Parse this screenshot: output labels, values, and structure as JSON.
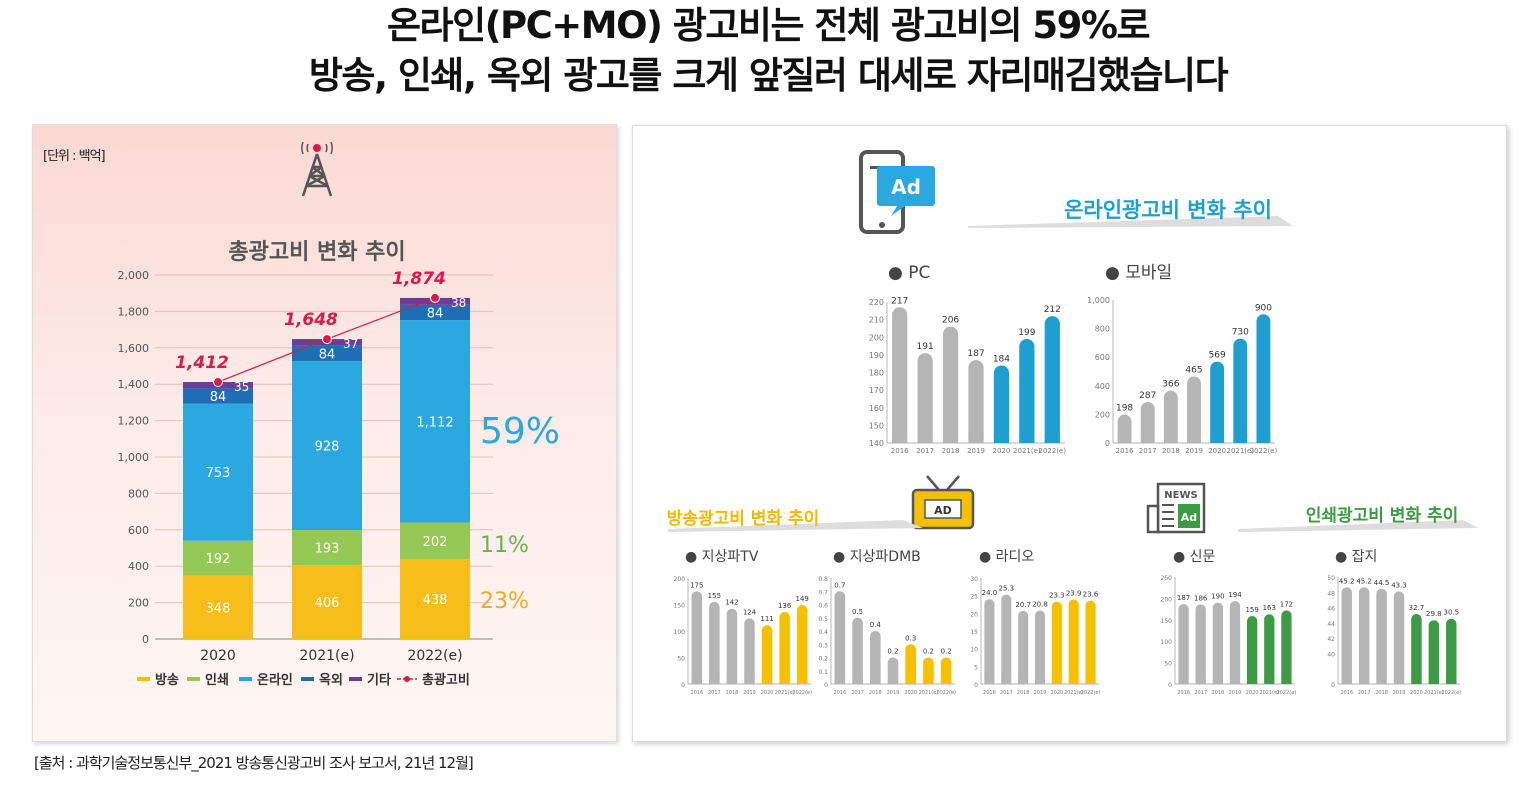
{
  "headline": {
    "line1": "온라인(PC+MO) 광고비는 전체 광고비의 59%로",
    "line2": "방송, 인쇄, 옥외 광고를 크게 앞질러 대세로 자리매김했습니다"
  },
  "source_note": "[출처 : 과학기술정보통신부_2021 방송통신광고비 조사 보고서, 21년 12월]",
  "left_panel": {
    "unit": "[단위 : 백억]",
    "title": "총광고비 변화 추이",
    "tower_icon": "broadcast-tower-icon",
    "colors": {
      "방송": "#f7bd1b",
      "인쇄": "#96c856",
      "온라인": "#2aa8df",
      "옥외": "#1f6db5",
      "기타": "#6a3d98",
      "총광고비": "#d81b4f"
    },
    "share_labels": [
      {
        "text": "59%",
        "color": "#2aa8df"
      },
      {
        "text": "11%",
        "color": "#6ab04c"
      },
      {
        "text": "23%",
        "color": "#f0a92a"
      }
    ]
  },
  "right_panel": {
    "online_title": "온라인광고비 변화 추이",
    "broadcast_title": "방송광고비 변화 추이",
    "print_title": "인쇄광고비 변화 추이",
    "online_icon": "mobile-ad-icon",
    "broadcast_icon": "tv-ad-icon",
    "print_icon": "newspaper-ad-icon",
    "bullet": "●"
  },
  "chart_data": [
    {
      "type": "bar",
      "stacked": true,
      "title": "총광고비 변화 추이",
      "categories": [
        "2020",
        "2021(e)",
        "2022(e)"
      ],
      "series": [
        {
          "name": "방송",
          "values": [
            348,
            406,
            438
          ]
        },
        {
          "name": "인쇄",
          "values": [
            192,
            193,
            202
          ]
        },
        {
          "name": "온라인",
          "values": [
            753,
            928,
            1112
          ]
        },
        {
          "name": "옥외",
          "values": [
            84,
            84,
            84
          ]
        },
        {
          "name": "기타",
          "values": [
            35,
            37,
            38
          ]
        }
      ],
      "value_labels": [
        [
          "348",
          "192",
          "753",
          "84",
          "35"
        ],
        [
          "406",
          "193",
          "928",
          "84",
          "37"
        ],
        [
          "438",
          "202",
          "1,112",
          "84",
          "38"
        ]
      ],
      "line": {
        "name": "총광고비",
        "values": [
          1412,
          1648,
          1874
        ],
        "labels": [
          "1,412",
          "1,648",
          "1,874"
        ]
      },
      "ylim": [
        0,
        2000
      ],
      "yticks": [
        "0",
        "200",
        "400",
        "600",
        "800",
        "1,000",
        "1,200",
        "1,400",
        "1,600",
        "1,800",
        "2,000"
      ],
      "grid": true,
      "legend_position": "bottom"
    },
    {
      "type": "bar",
      "title": "PC",
      "categories": [
        "2016",
        "2017",
        "2018",
        "2019",
        "2020",
        "2021(e)",
        "2022(e)"
      ],
      "values": [
        217,
        191,
        206,
        187,
        184,
        199,
        212
      ],
      "labels": [
        "217",
        "191",
        "206",
        "187",
        "184",
        "199",
        "212"
      ],
      "ylim": [
        140,
        220
      ],
      "yticks": [
        "140",
        "150",
        "160",
        "170",
        "180",
        "190",
        "200",
        "210",
        "220"
      ],
      "colors": [
        "#b5b5b5",
        "#b5b5b5",
        "#b5b5b5",
        "#b5b5b5",
        "#1f9fd0",
        "#1f9fd0",
        "#1f9fd0"
      ]
    },
    {
      "type": "bar",
      "title": "모바일",
      "categories": [
        "2016",
        "2017",
        "2018",
        "2019",
        "2020",
        "2021(e)",
        "2022(e)"
      ],
      "values": [
        198,
        287,
        366,
        465,
        569,
        730,
        900
      ],
      "labels": [
        "198",
        "287",
        "366",
        "465",
        "569",
        "730",
        "900"
      ],
      "ylim": [
        0,
        1000
      ],
      "yticks": [
        "0",
        "200",
        "400",
        "600",
        "800",
        "1,000"
      ],
      "colors": [
        "#b5b5b5",
        "#b5b5b5",
        "#b5b5b5",
        "#b5b5b5",
        "#1f9fd0",
        "#1f9fd0",
        "#1f9fd0"
      ]
    },
    {
      "type": "bar",
      "title": "지상파TV",
      "categories": [
        "2016",
        "2017",
        "2018",
        "2019",
        "2020",
        "2021(e)",
        "2022(e)"
      ],
      "values": [
        175,
        155,
        142,
        124,
        111,
        136,
        149
      ],
      "labels": [
        "175",
        "155",
        "142",
        "124",
        "111",
        "136",
        "149"
      ],
      "ylim": [
        0,
        200
      ],
      "yticks": [
        "0",
        "50",
        "100",
        "150",
        "200"
      ],
      "colors": [
        "#b5b5b5",
        "#b5b5b5",
        "#b5b5b5",
        "#b5b5b5",
        "#f5c000",
        "#f5c000",
        "#f5c000"
      ]
    },
    {
      "type": "bar",
      "title": "지상파DMB",
      "categories": [
        "2016",
        "2017",
        "2018",
        "2019",
        "2020",
        "2021(e)",
        "2022(e)"
      ],
      "values": [
        0.7,
        0.5,
        0.4,
        0.2,
        0.3,
        0.2,
        0.2
      ],
      "labels": [
        "0.7",
        "0.5",
        "0.4",
        "0.2",
        "0.3",
        "0.2",
        "0.2"
      ],
      "ylim": [
        0,
        0.8
      ],
      "yticks": [
        "0",
        "0.1",
        "0.2",
        "0.3",
        "0.4",
        "0.5",
        "0.6",
        "0.7",
        "0.8"
      ],
      "colors": [
        "#b5b5b5",
        "#b5b5b5",
        "#b5b5b5",
        "#b5b5b5",
        "#f5c000",
        "#f5c000",
        "#f5c000"
      ]
    },
    {
      "type": "bar",
      "title": "라디오",
      "categories": [
        "2016",
        "2017",
        "2018",
        "2019",
        "2020",
        "2021(e)",
        "2022(e)"
      ],
      "values": [
        24.0,
        25.3,
        20.7,
        20.8,
        23.3,
        23.9,
        23.6
      ],
      "labels": [
        "24.0",
        "25.3",
        "20.7",
        "20.8",
        "23.3",
        "23.9",
        "23.6"
      ],
      "ylim": [
        0,
        30
      ],
      "yticks": [
        "0",
        "5",
        "10",
        "15",
        "20",
        "25",
        "30"
      ],
      "colors": [
        "#b5b5b5",
        "#b5b5b5",
        "#b5b5b5",
        "#b5b5b5",
        "#f5c000",
        "#f5c000",
        "#f5c000"
      ]
    },
    {
      "type": "bar",
      "title": "신문",
      "categories": [
        "2016",
        "2017",
        "2018",
        "2019",
        "2020",
        "2021(e)",
        "2022(e)"
      ],
      "values": [
        187,
        186,
        190,
        194,
        159,
        163,
        172
      ],
      "labels": [
        "187",
        "186",
        "190",
        "194",
        "159",
        "163",
        "172"
      ],
      "ylim": [
        0,
        250
      ],
      "yticks": [
        "0",
        "50",
        "100",
        "150",
        "200",
        "250"
      ],
      "colors": [
        "#b5b5b5",
        "#b5b5b5",
        "#b5b5b5",
        "#b5b5b5",
        "#3e9b45",
        "#3e9b45",
        "#3e9b45"
      ]
    },
    {
      "type": "bar",
      "title": "잡지",
      "categories": [
        "2016",
        "2017",
        "2018",
        "2019",
        "2020",
        "2021(e)",
        "2022(e)"
      ],
      "values": [
        45.2,
        45.2,
        44.5,
        43.3,
        32.7,
        29.8,
        30.5
      ],
      "labels": [
        "45.2",
        "45.2",
        "44.5",
        "43.3",
        "32.7",
        "29.8",
        "30.5"
      ],
      "ylim": [
        0,
        50
      ],
      "yticks": [
        "0",
        "",
        "40",
        "42",
        "44",
        "46",
        "48",
        "50"
      ],
      "colors": [
        "#b5b5b5",
        "#b5b5b5",
        "#b5b5b5",
        "#b5b5b5",
        "#3e9b45",
        "#3e9b45",
        "#3e9b45"
      ]
    }
  ]
}
